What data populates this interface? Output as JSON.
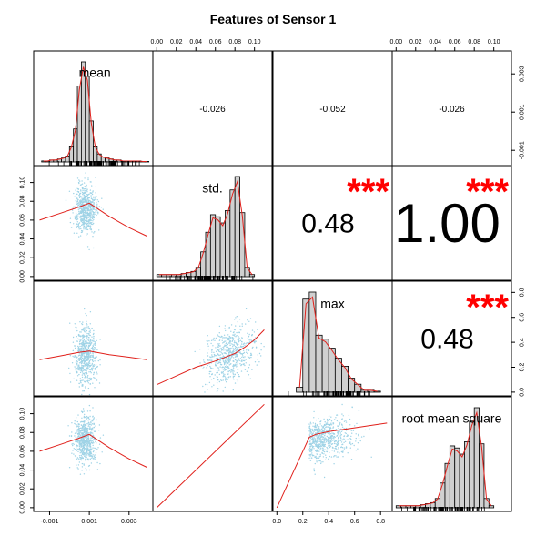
{
  "chart_data": {
    "type": "scatter",
    "title": "Features of Sensor 1",
    "variables": [
      "mean",
      "std.",
      "max",
      "root mean square"
    ],
    "axes": {
      "mean": {
        "range": [
          -0.0018,
          0.0042
        ],
        "ticks": [
          "-0.001",
          "0.001",
          "0.003"
        ],
        "tick_values": [
          -0.001,
          0.001,
          0.003
        ]
      },
      "std.": {
        "range": [
          -0.004,
          0.118
        ],
        "ticks": [
          "0.00",
          "0.02",
          "0.04",
          "0.06",
          "0.08",
          "0.10"
        ],
        "tick_values": [
          0,
          0.02,
          0.04,
          0.06,
          0.08,
          0.1
        ]
      },
      "max": {
        "range": [
          -0.03,
          0.89
        ],
        "ticks": [
          "0.0",
          "0.2",
          "0.4",
          "0.6",
          "0.8"
        ],
        "tick_values": [
          0,
          0.2,
          0.4,
          0.6,
          0.8
        ]
      },
      "root mean square": {
        "range": [
          -0.004,
          0.118
        ],
        "ticks": [
          "0.00",
          "0.02",
          "0.04",
          "0.06",
          "0.08",
          "0.10"
        ],
        "tick_values": [
          0,
          0.02,
          0.04,
          0.06,
          0.08,
          0.1
        ]
      }
    },
    "correlations": [
      {
        "row": "mean",
        "col": "std.",
        "value": "-0.026",
        "stars": ""
      },
      {
        "row": "mean",
        "col": "max",
        "value": "-0.052",
        "stars": ""
      },
      {
        "row": "mean",
        "col": "root mean square",
        "value": "-0.026",
        "stars": ""
      },
      {
        "row": "std.",
        "col": "max",
        "value": "0.48",
        "stars": "***"
      },
      {
        "row": "std.",
        "col": "root mean square",
        "value": "1.00",
        "stars": "***"
      },
      {
        "row": "max",
        "col": "root mean square",
        "value": "0.48",
        "stars": "***"
      }
    ],
    "histograms": {
      "mean": {
        "bins": [
          -0.0014,
          -0.0012,
          -0.001,
          -0.0008,
          -0.0006,
          -0.0004,
          -0.0002,
          0,
          0.0002,
          0.0004,
          0.0006,
          0.0008,
          0.001,
          0.0012,
          0.0014,
          0.0016,
          0.0018,
          0.002,
          0.0022,
          0.0024,
          0.0026,
          0.0028,
          0.003,
          0.0032,
          0.0034,
          0.0036,
          0.0038,
          0.004
        ],
        "counts": [
          0.01,
          0.01,
          0.02,
          0.02,
          0.03,
          0.04,
          0.06,
          0.16,
          0.33,
          0.76,
          1.0,
          0.86,
          0.41,
          0.16,
          0.08,
          0.05,
          0.04,
          0.03,
          0.02,
          0.02,
          0.01,
          0.01,
          0.01,
          0.01,
          0.01,
          0.005,
          0.005
        ]
      },
      "std.": {
        "bins": [
          0,
          0.005,
          0.01,
          0.015,
          0.02,
          0.025,
          0.03,
          0.035,
          0.04,
          0.045,
          0.05,
          0.055,
          0.06,
          0.065,
          0.07,
          0.075,
          0.08,
          0.085,
          0.09,
          0.095,
          0.1
        ],
        "counts": [
          0.02,
          0.02,
          0.02,
          0.02,
          0.02,
          0.03,
          0.04,
          0.05,
          0.09,
          0.24,
          0.43,
          0.6,
          0.58,
          0.52,
          0.64,
          0.84,
          0.97,
          0.62,
          0.09,
          0.02
        ]
      },
      "max": {
        "bins": [
          0.15,
          0.2,
          0.25,
          0.3,
          0.35,
          0.4,
          0.45,
          0.5,
          0.55,
          0.6,
          0.65,
          0.7,
          0.75,
          0.8
        ],
        "counts": [
          0.05,
          0.93,
          1.0,
          0.57,
          0.53,
          0.44,
          0.34,
          0.26,
          0.14,
          0.08,
          0.02,
          0.02,
          0.01
        ]
      },
      "root mean square": {
        "bins": [
          0,
          0.005,
          0.01,
          0.015,
          0.02,
          0.025,
          0.03,
          0.035,
          0.04,
          0.045,
          0.05,
          0.055,
          0.06,
          0.065,
          0.07,
          0.075,
          0.08,
          0.085,
          0.09,
          0.095,
          0.1
        ],
        "counts": [
          0.02,
          0.02,
          0.02,
          0.02,
          0.02,
          0.03,
          0.04,
          0.05,
          0.09,
          0.24,
          0.43,
          0.6,
          0.58,
          0.52,
          0.64,
          0.84,
          0.97,
          0.62,
          0.09,
          0.02
        ]
      }
    },
    "scatter_summary": {
      "std. vs mean": {
        "x_center": 0.0008,
        "y_center": 0.072,
        "fit_x": [
          -0.0015,
          -0.0005,
          0.0005,
          0.001,
          0.002,
          0.003,
          0.0039
        ],
        "fit_y": [
          0.06,
          0.067,
          0.074,
          0.078,
          0.064,
          0.052,
          0.043
        ]
      },
      "max vs mean": {
        "x_center": 0.0008,
        "y_center": 0.3,
        "fit_x": [
          -0.0015,
          -0.0005,
          0.0005,
          0.001,
          0.002,
          0.003,
          0.0039
        ],
        "fit_y": [
          0.26,
          0.29,
          0.32,
          0.33,
          0.3,
          0.28,
          0.26
        ]
      },
      "max vs std.": {
        "fit_x": [
          0,
          0.02,
          0.04,
          0.06,
          0.08,
          0.09,
          0.1,
          0.11
        ],
        "fit_y": [
          0.06,
          0.13,
          0.2,
          0.25,
          0.31,
          0.36,
          0.42,
          0.5
        ]
      },
      "root mean square vs mean": {
        "x_center": 0.0008,
        "y_center": 0.072,
        "fit_x": [
          -0.0015,
          -0.0005,
          0.0005,
          0.001,
          0.002,
          0.003,
          0.0039
        ],
        "fit_y": [
          0.06,
          0.067,
          0.074,
          0.078,
          0.064,
          0.052,
          0.043
        ]
      },
      "root mean square vs std.": {
        "fit_x": [
          0,
          0.11
        ],
        "fit_y": [
          0,
          0.11
        ]
      },
      "root mean square vs max": {
        "fit_x": [
          0.0,
          0.1,
          0.2,
          0.25,
          0.3,
          0.4,
          0.5,
          0.6,
          0.7,
          0.85
        ],
        "fit_y": [
          0.0,
          0.03,
          0.06,
          0.075,
          0.078,
          0.081,
          0.083,
          0.085,
          0.087,
          0.09
        ]
      }
    },
    "xlabel": "",
    "ylabel": "",
    "grid": false,
    "legend": "none"
  },
  "colors": {
    "points": "#9fd3e6",
    "fit": "#e0201b",
    "density": "#e0201b",
    "bars": "#d0d0d0",
    "stars": "#ff0000"
  }
}
